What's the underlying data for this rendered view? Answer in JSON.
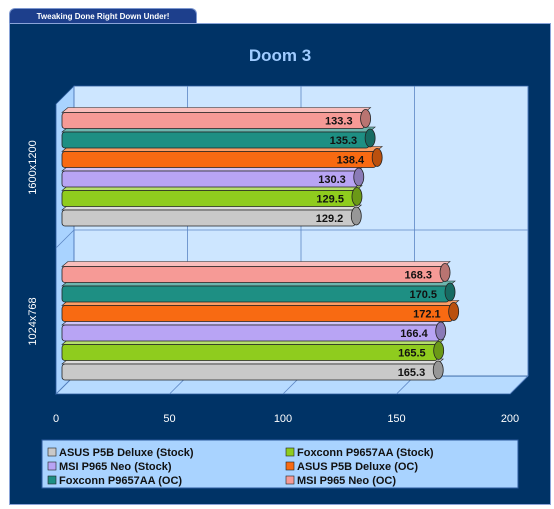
{
  "header": {
    "tab_text": "Tweaking Done Right Down Under!"
  },
  "chart_data": {
    "type": "bar",
    "orientation": "horizontal",
    "title": "Doom 3",
    "categories": [
      "1024x768",
      "1600x1200"
    ],
    "xlim": [
      0,
      200
    ],
    "xticks": [
      0,
      50,
      100,
      150,
      200
    ],
    "grid": true,
    "legend_position": "bottom",
    "series": [
      {
        "name": "ASUS P5B Deluxe (Stock)",
        "color": "#c9c9c9",
        "values": [
          165.3,
          129.2
        ],
        "labels": [
          "165.3",
          "129.2"
        ]
      },
      {
        "name": "Foxconn P9657AA (Stock)",
        "color": "#8fcc1e",
        "values": [
          165.5,
          129.5
        ],
        "labels": [
          "165.5",
          "129.5"
        ]
      },
      {
        "name": "MSI P965 Neo (Stock)",
        "color": "#b8a4f4",
        "values": [
          166.4,
          130.3
        ],
        "labels": [
          "166.4",
          "130.3"
        ]
      },
      {
        "name": "ASUS P5B Deluxe (OC)",
        "color": "#f86a12",
        "values": [
          172.1,
          138.4
        ],
        "labels": [
          "172.1",
          "138.4"
        ]
      },
      {
        "name": "Foxconn P9657AA (OC)",
        "color": "#1e8f83",
        "values": [
          170.5,
          135.3
        ],
        "labels": [
          "170.5",
          "135.3"
        ]
      },
      {
        "name": "MSI P965 Neo (OC)",
        "color": "#f69a96",
        "values": [
          168.3,
          133.3
        ],
        "labels": [
          "168.3",
          "133.3"
        ]
      }
    ]
  }
}
